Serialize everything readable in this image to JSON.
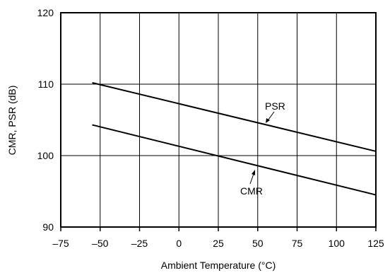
{
  "chart_data": {
    "type": "line",
    "title": "",
    "xlabel": "Ambient Temperature (°C)",
    "ylabel": "CMR, PSR (dB)",
    "xlim": [
      -75,
      125
    ],
    "ylim": [
      90,
      120
    ],
    "xticks": [
      -75,
      -50,
      -25,
      0,
      25,
      50,
      75,
      100,
      125
    ],
    "yticks": [
      90,
      100,
      110,
      120
    ],
    "xtick_labels": [
      "–75",
      "–50",
      "–25",
      "0",
      "25",
      "50",
      "75",
      "100",
      "125"
    ],
    "ytick_labels": [
      "90",
      "100",
      "110",
      "120"
    ],
    "grid": true,
    "legend": "none",
    "series": [
      {
        "name": "PSR",
        "x": [
          -55,
          125
        ],
        "y": [
          110.2,
          100.6
        ]
      },
      {
        "name": "CMR",
        "x": [
          -55,
          125
        ],
        "y": [
          104.3,
          94.5
        ]
      }
    ],
    "annotations": [
      {
        "text": "PSR",
        "series": "PSR"
      },
      {
        "text": "CMR",
        "series": "CMR"
      }
    ],
    "colors": {
      "line": "#000000",
      "grid": "#000000",
      "background": "#ffffff"
    }
  }
}
